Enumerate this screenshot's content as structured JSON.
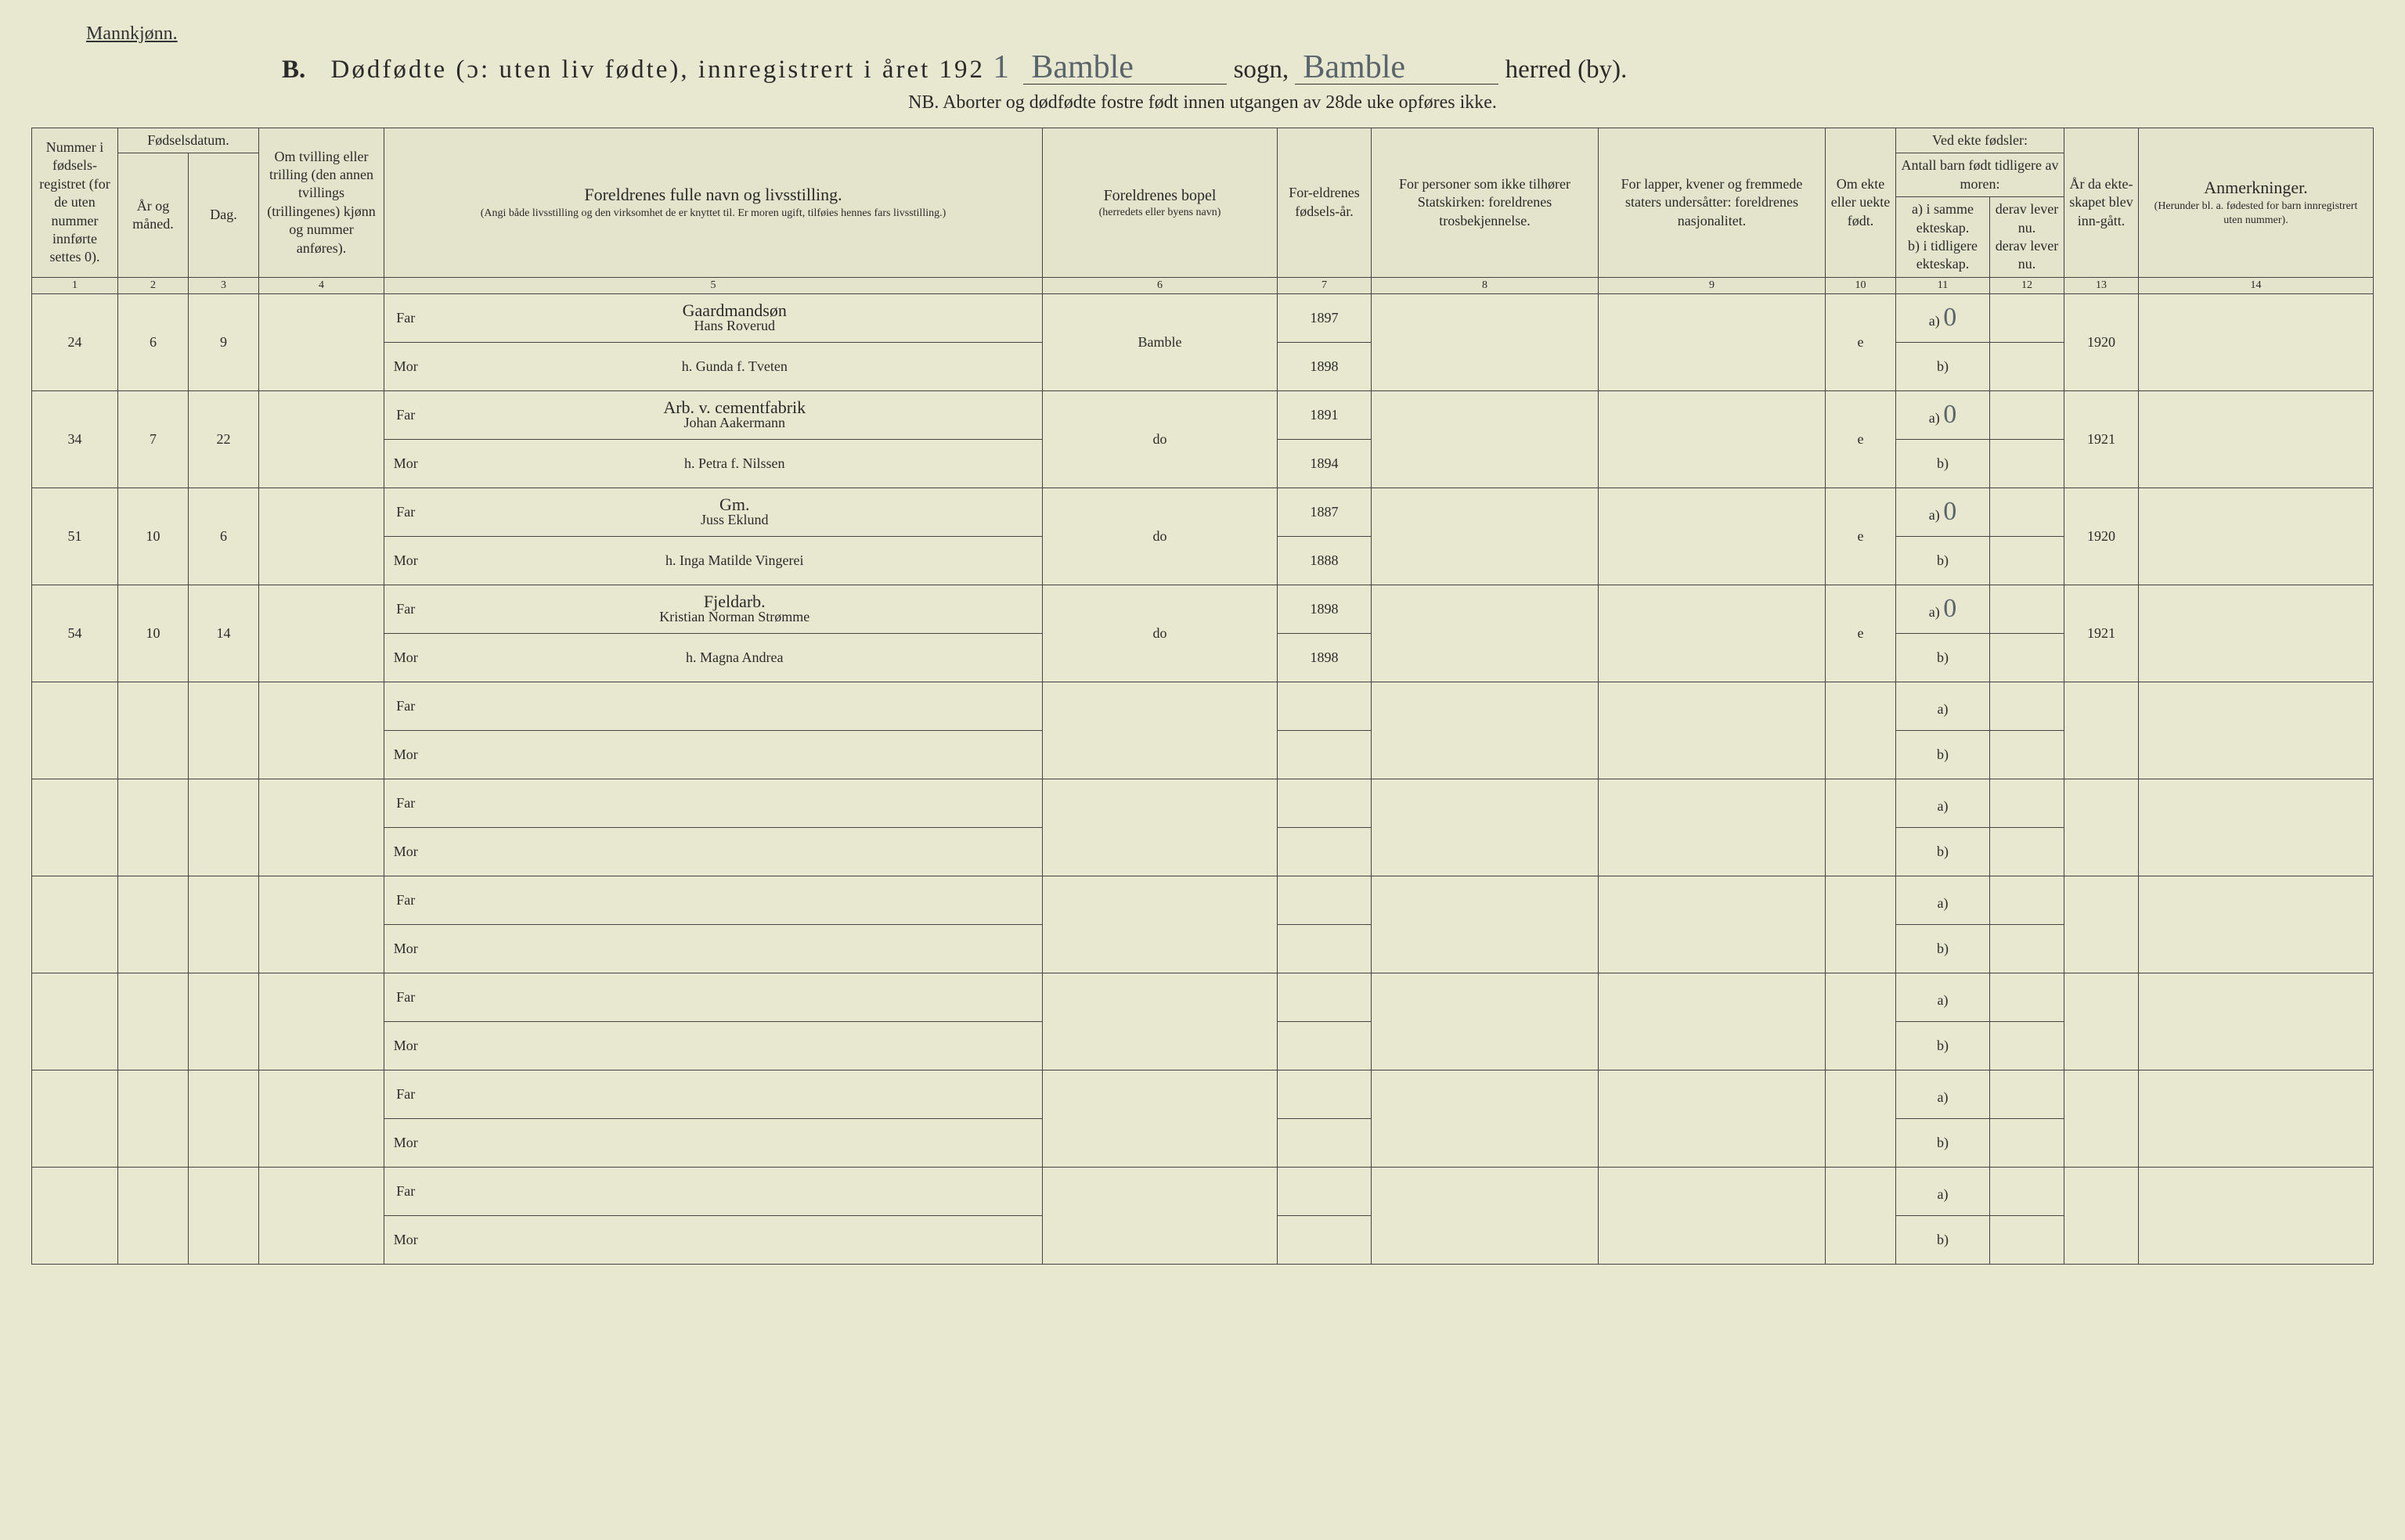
{
  "header": {
    "gender_label": "Mannkjønn.",
    "section_letter": "B.",
    "title_main": "Dødfødte (ɔ: uten liv fødte), innregistrert i året 192",
    "year_suffix_hand": "1",
    "sogn_label": "sogn,",
    "herred_label": "herred (by).",
    "sogn_value": "Bamble",
    "herred_value": "Bamble",
    "sub_note": "NB.  Aborter og dødfødte fostre født innen utgangen av 28de uke opføres ikke."
  },
  "columns": {
    "c1": "Nummer i fødsels-registret (for de uten nummer innførte settes 0).",
    "c2g": "Fødselsdatum.",
    "c2": "År og måned.",
    "c3": "Dag.",
    "c4": "Om tvilling eller trilling (den annen tvillings (trillingenes) kjønn og nummer anføres).",
    "c5": "Foreldrenes fulle navn og livsstilling.",
    "c5s": "(Angi både livsstilling og den virksomhet de er knyttet til. Er moren ugift, tilføies hennes fars livsstilling.)",
    "c6": "Foreldrenes bopel",
    "c6s": "(herredets eller byens navn)",
    "c7": "For-eldrenes fødsels-år.",
    "c8": "For personer som ikke tilhører Statskirken: foreldrenes trosbekjennelse.",
    "c9": "For lapper, kvener og fremmede staters undersåtter: foreldrenes nasjonalitet.",
    "c10": "Om ekte eller uekte født.",
    "c11g": "Ved ekte fødsler:",
    "c11s": "Antall barn født tidligere av moren:",
    "c11a": "a) i samme ekteskap.",
    "c11b": "b) i tidligere ekteskap.",
    "c12a": "derav lever nu.",
    "c12b": "derav lever nu.",
    "c13": "År da ekte-skapet blev inn-gått.",
    "c14": "Anmerkninger.",
    "c14s": "(Herunder bl. a. fødested for barn innregistrert uten nummer).",
    "far": "Far",
    "mor": "Mor",
    "a_label": "a)",
    "b_label": "b)"
  },
  "colnums": [
    "1",
    "2",
    "3",
    "4",
    "5",
    "6",
    "7",
    "8",
    "9",
    "10",
    "11",
    "12",
    "13",
    "14"
  ],
  "rows": [
    {
      "num": "24",
      "mnd": "6",
      "dag": "9",
      "tv": "",
      "far_occ": "Gaardmandsøn",
      "far": "Hans Roverud",
      "mor": "h. Gunda f. Tveten",
      "bopel": "Bamble",
      "far_aar": "1897",
      "mor_aar": "1898",
      "ekte": "e",
      "a": "0",
      "yr": "1920"
    },
    {
      "num": "34",
      "mnd": "7",
      "dag": "22",
      "tv": "",
      "far_occ": "Arb. v. cementfabrik",
      "far": "Johan Aakermann",
      "mor": "h. Petra f. Nilssen",
      "bopel": "do",
      "far_aar": "1891",
      "mor_aar": "1894",
      "ekte": "e",
      "a": "0",
      "yr": "1921"
    },
    {
      "num": "51",
      "mnd": "10",
      "dag": "6",
      "tv": "",
      "far_occ": "Gm.",
      "far": "Juss Eklund",
      "mor": "h. Inga Matilde Vingerei",
      "bopel": "do",
      "far_aar": "1887",
      "mor_aar": "1888",
      "ekte": "e",
      "a": "0",
      "yr": "1920"
    },
    {
      "num": "54",
      "mnd": "10",
      "dag": "14",
      "tv": "",
      "far_occ": "Fjeldarb.",
      "far": "Kristian Norman Strømme",
      "mor": "h. Magna Andrea",
      "bopel": "do",
      "far_aar": "1898",
      "mor_aar": "1898",
      "ekte": "e",
      "a": "0",
      "yr": "1921"
    },
    {
      "num": "",
      "mnd": "",
      "dag": "",
      "tv": "",
      "far_occ": "",
      "far": "",
      "mor": "",
      "bopel": "",
      "far_aar": "",
      "mor_aar": "",
      "ekte": "",
      "a": "",
      "yr": ""
    },
    {
      "num": "",
      "mnd": "",
      "dag": "",
      "tv": "",
      "far_occ": "",
      "far": "",
      "mor": "",
      "bopel": "",
      "far_aar": "",
      "mor_aar": "",
      "ekte": "",
      "a": "",
      "yr": ""
    },
    {
      "num": "",
      "mnd": "",
      "dag": "",
      "tv": "",
      "far_occ": "",
      "far": "",
      "mor": "",
      "bopel": "",
      "far_aar": "",
      "mor_aar": "",
      "ekte": "",
      "a": "",
      "yr": ""
    },
    {
      "num": "",
      "mnd": "",
      "dag": "",
      "tv": "",
      "far_occ": "",
      "far": "",
      "mor": "",
      "bopel": "",
      "far_aar": "",
      "mor_aar": "",
      "ekte": "",
      "a": "",
      "yr": ""
    },
    {
      "num": "",
      "mnd": "",
      "dag": "",
      "tv": "",
      "far_occ": "",
      "far": "",
      "mor": "",
      "bopel": "",
      "far_aar": "",
      "mor_aar": "",
      "ekte": "",
      "a": "",
      "yr": ""
    },
    {
      "num": "",
      "mnd": "",
      "dag": "",
      "tv": "",
      "far_occ": "",
      "far": "",
      "mor": "",
      "bopel": "",
      "far_aar": "",
      "mor_aar": "",
      "ekte": "",
      "a": "",
      "yr": ""
    }
  ],
  "colors": {
    "paper": "#e8e8d0",
    "ink": "#2a2a2a",
    "hand": "#5a646b",
    "rule": "#444444"
  }
}
